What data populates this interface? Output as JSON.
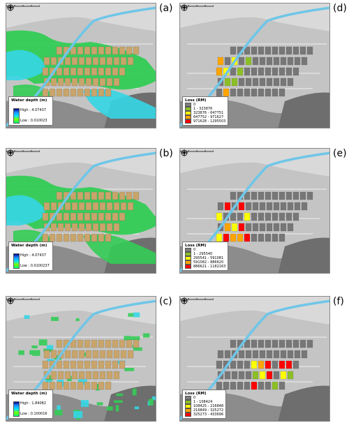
{
  "panels": [
    {
      "label": "(a)",
      "kind": "depth",
      "legend": {
        "title": "Water depth (m)",
        "high": "High : 4.07437",
        "low": "Low : 0.010023"
      }
    },
    {
      "label": "(b)",
      "kind": "depth",
      "legend": {
        "title": "Water depth (m)",
        "high": "High : 4.07437",
        "low": "Low : 0.0100237"
      }
    },
    {
      "label": "(c)",
      "kind": "depth",
      "legend": {
        "title": "Water depth (m)",
        "high": "High : 1.84082",
        "low": "Low : 0.100016"
      }
    },
    {
      "label": "(d)",
      "kind": "loss",
      "legend": {
        "title": "Loss (RM)",
        "classes": [
          "0",
          "1 - 323876",
          "323876 - 647751",
          "647752 - 971627",
          "971628 - 1295503"
        ]
      }
    },
    {
      "label": "(e)",
      "kind": "loss",
      "legend": {
        "title": "Loss (RM)",
        "classes": [
          "0",
          "1 - 295540",
          "295541 - 591081",
          "591082 - 886620",
          "886621 - 1182163"
        ]
      }
    },
    {
      "label": "(f)",
      "kind": "loss",
      "legend": {
        "title": "Loss (RM)",
        "classes": [
          "0",
          "1 - 108424",
          "108425 - 216848",
          "216849 - 325272",
          "325273 - 433696"
        ]
      }
    }
  ],
  "colors": {
    "loss_classes": [
      "#7f7f7f",
      "#8cbf26",
      "#ffff00",
      "#ffa500",
      "#ff0000"
    ],
    "building": "#c9a56b",
    "building_gray": "#777777",
    "river": "#6ec6e8",
    "water_green": "#33cc55",
    "water_cyan": "#35d6e6"
  }
}
